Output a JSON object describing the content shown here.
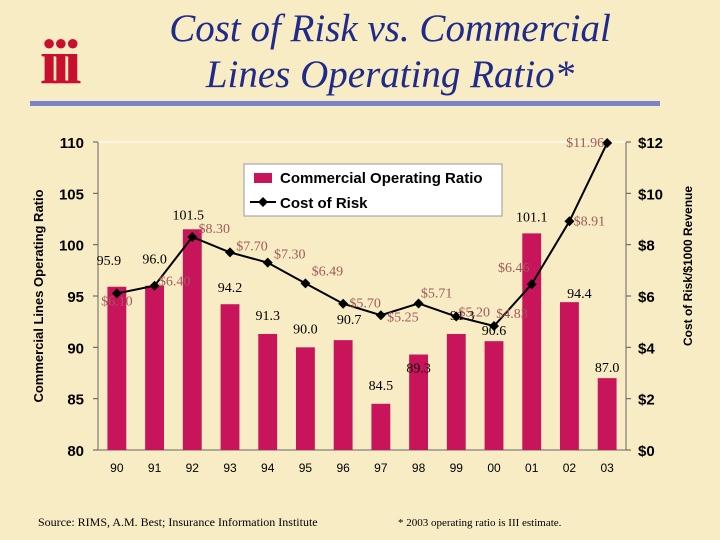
{
  "logo_text": "iii",
  "title_line1": "Cost of Risk vs. Commercial",
  "title_line2": "Lines Operating Ratio*",
  "source": "Source: RIMS, A.M. Best; Insurance Information Institute",
  "footnote": "* 2003 operating ratio is III estimate.",
  "colors": {
    "bar": "#c8145a",
    "line": "#000000",
    "title": "#1f2a8a",
    "cost_label": "#a05a5a",
    "logo": "#c8102e"
  },
  "chart_data": {
    "type": "bar",
    "categories": [
      "90",
      "91",
      "92",
      "93",
      "94",
      "95",
      "96",
      "97",
      "98",
      "99",
      "00",
      "01",
      "02",
      "03"
    ],
    "series": [
      {
        "name": "Commercial Operating Ratio",
        "type": "bar",
        "axis": "left",
        "values": [
          95.9,
          96.0,
          101.5,
          94.2,
          91.3,
          90.0,
          90.7,
          84.5,
          89.3,
          91.3,
          90.6,
          101.1,
          94.4,
          87.0
        ],
        "labels": [
          "95.9",
          "96.0",
          "101.5",
          "94.2",
          "91.3",
          "90.0",
          "90.7",
          "84.5",
          "89.3",
          "91.3",
          "90.6",
          "101.1",
          "94.4",
          "87.0"
        ]
      },
      {
        "name": "Cost of Risk",
        "type": "line",
        "axis": "right",
        "values": [
          6.1,
          6.4,
          8.3,
          7.7,
          7.3,
          6.49,
          5.7,
          5.25,
          5.71,
          5.2,
          4.83,
          6.46,
          8.91,
          11.96
        ],
        "labels": [
          "$6.10",
          "$6.40",
          "$8.30",
          "$7.70",
          "$7.30",
          "$6.49",
          "$5.70",
          "$5.25",
          "$5.71",
          "$5.20",
          "$4.83",
          "$6.46",
          "$8.91",
          "$11.96"
        ]
      }
    ],
    "y_left": {
      "label": "Commercial Lines Operating Ratio",
      "range": [
        80,
        110
      ],
      "ticks": [
        "80",
        "85",
        "90",
        "95",
        "100",
        "105",
        "110"
      ]
    },
    "y_right": {
      "label": "Cost of Risk/$1000 Revenue",
      "range": [
        0,
        12
      ],
      "ticks": [
        "$0",
        "$2",
        "$4",
        "$6",
        "$8",
        "$10",
        "$12"
      ]
    },
    "legend": {
      "position": "top-center",
      "entries": [
        "Commercial Operating Ratio",
        "Cost of Risk"
      ]
    }
  }
}
